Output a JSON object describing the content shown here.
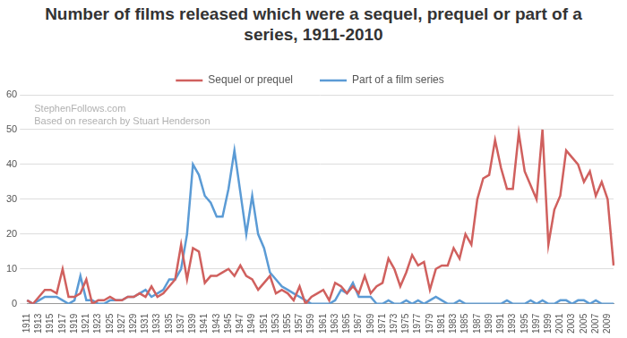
{
  "chart_data": {
    "type": "line",
    "title": "Number of films released which were a sequel, prequel or part of a series, 1911-2010",
    "annotations": [
      "StephenFollows.com",
      "Based on research by Stuart Henderson"
    ],
    "categories": [
      "1911",
      null,
      "1913",
      null,
      "1915",
      null,
      "1917",
      null,
      "1919",
      null,
      "1921",
      null,
      "1923",
      null,
      "1925",
      null,
      "1927",
      null,
      "1929",
      null,
      "1931",
      null,
      "1933",
      null,
      "1935",
      null,
      "1937",
      null,
      "1939",
      null,
      "1941",
      null,
      "1943",
      null,
      "1945",
      null,
      "1947",
      null,
      "1949",
      null,
      "1951",
      null,
      "1953",
      null,
      "1955",
      null,
      "1957",
      null,
      "1959",
      null,
      "1961",
      null,
      "1963",
      null,
      "1965",
      null,
      "1967",
      null,
      "1969",
      null,
      "1971",
      null,
      "1973",
      null,
      "1975",
      null,
      "1977",
      null,
      "1979",
      null,
      "1981",
      null,
      "1983",
      null,
      "1985",
      null,
      "1987",
      null,
      "1989",
      null,
      "1991",
      null,
      "1993",
      null,
      "1995",
      null,
      "1997",
      null,
      "1999",
      null,
      "2001",
      null,
      "2003",
      null,
      "2005",
      null,
      "2007",
      null,
      "2009",
      null
    ],
    "series": [
      {
        "name": "Sequel or prequel",
        "color": "#d0605e",
        "values": [
          1,
          0,
          2,
          4,
          4,
          3,
          10,
          2,
          2,
          3,
          7,
          0,
          1,
          1,
          2,
          1,
          1,
          2,
          2,
          3,
          2,
          5,
          2,
          3,
          5,
          7,
          17,
          7,
          16,
          15,
          6,
          8,
          8,
          9,
          10,
          8,
          11,
          8,
          7,
          4,
          6,
          8,
          3,
          4,
          3,
          1,
          5,
          0,
          2,
          3,
          4,
          1,
          6,
          5,
          3,
          5,
          3,
          8,
          3,
          5,
          6,
          13,
          10,
          5,
          9,
          14,
          11,
          12,
          4,
          10,
          11,
          11,
          16,
          13,
          20,
          17,
          30,
          36,
          37,
          47,
          39,
          33,
          33,
          49,
          38,
          34,
          30,
          50,
          17,
          27,
          31,
          44,
          42,
          40,
          35,
          38,
          31,
          35,
          30,
          11
        ]
      },
      {
        "name": "Part of a film series",
        "color": "#5b9bd5",
        "values": [
          1,
          0,
          1,
          2,
          2,
          2,
          1,
          0,
          1,
          8,
          1,
          1,
          0,
          0,
          1,
          1,
          1,
          2,
          2,
          3,
          4,
          2,
          3,
          4,
          7,
          7,
          10,
          20,
          40,
          37,
          31,
          29,
          25,
          25,
          33,
          44,
          32,
          20,
          31,
          20,
          16,
          9,
          7,
          5,
          4,
          3,
          2,
          1,
          0,
          0,
          0,
          0,
          1,
          4,
          3,
          6,
          2,
          2,
          2,
          0,
          0,
          1,
          0,
          0,
          1,
          0,
          1,
          0,
          1,
          2,
          1,
          0,
          0,
          1,
          0,
          0,
          0,
          0,
          0,
          0,
          0,
          1,
          0,
          0,
          0,
          1,
          0,
          1,
          0,
          0,
          1,
          1,
          0,
          1,
          1,
          0,
          1,
          0,
          0,
          0
        ]
      }
    ],
    "ylim": [
      0,
      60
    ],
    "yticks": [
      0,
      10,
      20,
      30,
      40,
      50,
      60
    ],
    "grid": true,
    "legend": "top"
  }
}
